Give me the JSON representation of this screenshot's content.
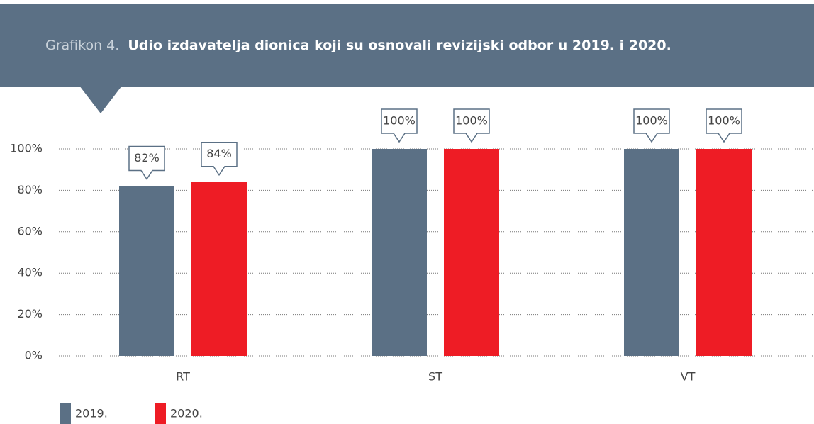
{
  "chart_data": {
    "type": "bar",
    "label": "Grafikon 4.",
    "title": "Udio izdavatelja dionica koji su osnovali revizijski odbor u 2019. i 2020.",
    "categories": [
      "RT",
      "ST",
      "VT"
    ],
    "series": [
      {
        "name": "2019.",
        "color": "#5b7085",
        "values": [
          82,
          100,
          100
        ],
        "value_labels": [
          "82%",
          "100%",
          "100%"
        ]
      },
      {
        "name": "2020.",
        "color": "#ee1c25",
        "values": [
          84,
          100,
          100
        ],
        "value_labels": [
          "84%",
          "100%",
          "100%"
        ]
      }
    ],
    "ylim": [
      0,
      100
    ],
    "yticks": [
      {
        "value": 0,
        "label": "0%"
      },
      {
        "value": 20,
        "label": "20%"
      },
      {
        "value": 40,
        "label": "40%"
      },
      {
        "value": 60,
        "label": "60%"
      },
      {
        "value": 80,
        "label": "80%"
      },
      {
        "value": 100,
        "label": "100%"
      }
    ],
    "grid": true
  }
}
